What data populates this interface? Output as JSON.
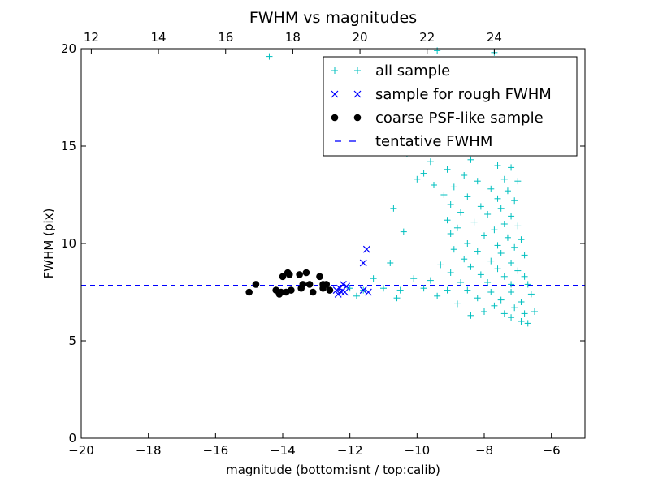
{
  "chart_data": {
    "type": "scatter",
    "title": "FWHM vs magnitudes",
    "xlabel": "magnitude (bottom:isnt / top:calib)",
    "ylabel": "FWHM (pix)",
    "xlim": [
      -20,
      -5
    ],
    "ylim": [
      0,
      20
    ],
    "xticks": [
      -20,
      -18,
      -16,
      -14,
      -12,
      -10,
      -8,
      -6
    ],
    "yticks": [
      0,
      5,
      10,
      15,
      20
    ],
    "top_xticks": [
      12,
      14,
      16,
      18,
      20,
      22,
      24
    ],
    "top_axis_offset": 31.7,
    "grid": false,
    "legend_position": "upper-right",
    "tentative_fwhm": 7.85,
    "series": [
      {
        "name": "all sample",
        "marker": "+",
        "color": "#00bfbf",
        "points": [
          [
            -14.4,
            19.6
          ],
          [
            -9.4,
            19.9
          ],
          [
            -7.7,
            19.8
          ],
          [
            -7.5,
            19.1
          ],
          [
            -7.3,
            18.6
          ],
          [
            -7.6,
            18.1
          ],
          [
            -7.4,
            17.6
          ],
          [
            -7.8,
            17.2
          ],
          [
            -7.5,
            16.8
          ],
          [
            -7.2,
            16.4
          ],
          [
            -7.9,
            16.0
          ],
          [
            -7.3,
            15.7
          ],
          [
            -10.0,
            15.6
          ],
          [
            -9.2,
            15.3
          ],
          [
            -8.0,
            15.1
          ],
          [
            -7.1,
            15.0
          ],
          [
            -10.3,
            14.6
          ],
          [
            -9.6,
            14.2
          ],
          [
            -8.4,
            14.3
          ],
          [
            -7.6,
            14.0
          ],
          [
            -7.2,
            13.9
          ],
          [
            -9.1,
            13.8
          ],
          [
            -9.8,
            13.6
          ],
          [
            -8.6,
            13.5
          ],
          [
            -10.0,
            13.3
          ],
          [
            -8.2,
            13.2
          ],
          [
            -7.4,
            13.3
          ],
          [
            -7.0,
            13.2
          ],
          [
            -9.5,
            13.0
          ],
          [
            -8.9,
            12.9
          ],
          [
            -7.8,
            12.8
          ],
          [
            -7.3,
            12.7
          ],
          [
            -9.2,
            12.5
          ],
          [
            -8.5,
            12.4
          ],
          [
            -7.6,
            12.3
          ],
          [
            -7.1,
            12.2
          ],
          [
            -9.0,
            12.0
          ],
          [
            -8.1,
            11.9
          ],
          [
            -7.5,
            11.8
          ],
          [
            -10.7,
            11.8
          ],
          [
            -8.7,
            11.6
          ],
          [
            -7.9,
            11.5
          ],
          [
            -7.2,
            11.4
          ],
          [
            -9.1,
            11.2
          ],
          [
            -8.3,
            11.1
          ],
          [
            -7.4,
            11.0
          ],
          [
            -7.0,
            10.9
          ],
          [
            -8.8,
            10.8
          ],
          [
            -7.7,
            10.7
          ],
          [
            -10.4,
            10.6
          ],
          [
            -9.0,
            10.5
          ],
          [
            -8.0,
            10.4
          ],
          [
            -7.3,
            10.3
          ],
          [
            -6.9,
            10.2
          ],
          [
            -8.5,
            10.0
          ],
          [
            -7.6,
            9.9
          ],
          [
            -7.1,
            9.8
          ],
          [
            -8.9,
            9.7
          ],
          [
            -8.2,
            9.6
          ],
          [
            -7.5,
            9.5
          ],
          [
            -6.8,
            9.4
          ],
          [
            -8.6,
            9.2
          ],
          [
            -7.8,
            9.1
          ],
          [
            -7.2,
            9.0
          ],
          [
            -10.8,
            9.0
          ],
          [
            -9.3,
            8.9
          ],
          [
            -8.4,
            8.8
          ],
          [
            -7.6,
            8.7
          ],
          [
            -7.0,
            8.6
          ],
          [
            -9.0,
            8.5
          ],
          [
            -8.1,
            8.4
          ],
          [
            -7.4,
            8.3
          ],
          [
            -6.8,
            8.3
          ],
          [
            -11.3,
            8.2
          ],
          [
            -10.1,
            8.2
          ],
          [
            -9.6,
            8.1
          ],
          [
            -8.7,
            8.0
          ],
          [
            -7.9,
            8.0
          ],
          [
            -7.2,
            7.9
          ],
          [
            -6.7,
            7.9
          ],
          [
            -12.0,
            7.7
          ],
          [
            -11.6,
            7.6
          ],
          [
            -11.0,
            7.7
          ],
          [
            -10.5,
            7.6
          ],
          [
            -9.8,
            7.7
          ],
          [
            -9.1,
            7.6
          ],
          [
            -8.5,
            7.6
          ],
          [
            -7.8,
            7.5
          ],
          [
            -7.2,
            7.5
          ],
          [
            -6.6,
            7.4
          ],
          [
            -11.8,
            7.3
          ],
          [
            -10.6,
            7.2
          ],
          [
            -9.4,
            7.3
          ],
          [
            -8.2,
            7.2
          ],
          [
            -7.5,
            7.1
          ],
          [
            -6.9,
            7.0
          ],
          [
            -8.8,
            6.9
          ],
          [
            -7.7,
            6.8
          ],
          [
            -7.1,
            6.7
          ],
          [
            -8.0,
            6.5
          ],
          [
            -7.4,
            6.4
          ],
          [
            -6.8,
            6.4
          ],
          [
            -6.5,
            6.5
          ],
          [
            -7.2,
            6.2
          ],
          [
            -8.4,
            6.3
          ],
          [
            -6.9,
            6.0
          ],
          [
            -6.7,
            5.9
          ]
        ]
      },
      {
        "name": "sample for rough FWHM",
        "marker": "x",
        "color": "#0000ff",
        "points": [
          [
            -11.5,
            9.7
          ],
          [
            -11.6,
            9.0
          ],
          [
            -12.2,
            7.9
          ],
          [
            -12.3,
            7.7
          ],
          [
            -12.4,
            7.6
          ],
          [
            -12.25,
            7.5
          ],
          [
            -12.35,
            7.4
          ],
          [
            -12.15,
            7.5
          ],
          [
            -11.6,
            7.6
          ],
          [
            -11.45,
            7.5
          ],
          [
            -12.1,
            7.8
          ]
        ]
      },
      {
        "name": "coarse PSF-like sample",
        "marker": "o",
        "color": "#000000",
        "points": [
          [
            -15.0,
            7.5
          ],
          [
            -14.8,
            7.9
          ],
          [
            -14.2,
            7.6
          ],
          [
            -14.1,
            7.4
          ],
          [
            -14.0,
            8.3
          ],
          [
            -13.9,
            7.5
          ],
          [
            -13.85,
            8.5
          ],
          [
            -13.8,
            8.4
          ],
          [
            -13.75,
            7.6
          ],
          [
            -13.5,
            8.4
          ],
          [
            -13.4,
            7.9
          ],
          [
            -13.3,
            8.5
          ],
          [
            -13.2,
            7.9
          ],
          [
            -13.1,
            7.5
          ],
          [
            -12.9,
            8.3
          ],
          [
            -12.8,
            7.9
          ],
          [
            -12.8,
            7.7
          ],
          [
            -12.6,
            7.6
          ],
          [
            -12.7,
            7.9
          ],
          [
            -13.45,
            7.7
          ],
          [
            -14.05,
            7.5
          ]
        ]
      },
      {
        "name": "tentative FWHM",
        "marker": "dashed-line",
        "color": "#0000ff"
      }
    ]
  }
}
